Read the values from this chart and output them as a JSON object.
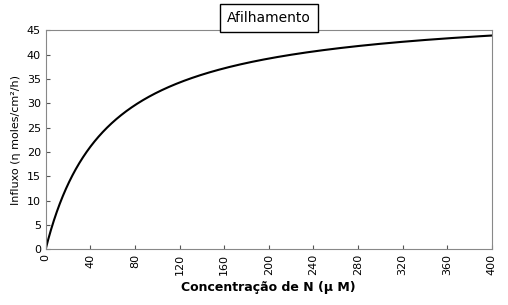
{
  "title": "Afilhamento",
  "xlabel": "Concentração de N (μ M)",
  "ylabel": "Influxo (η moles/cm²/h)",
  "xlim": [
    0,
    400
  ],
  "ylim": [
    0,
    45
  ],
  "xticks": [
    0,
    40,
    80,
    120,
    160,
    200,
    240,
    280,
    320,
    360,
    400
  ],
  "yticks": [
    0,
    5,
    10,
    15,
    20,
    25,
    30,
    35,
    40,
    45
  ],
  "vmax": 50.0,
  "km": 55.0,
  "line_color": "#000000",
  "fig_bg": "#ffffff",
  "plot_bg": "#ffffff",
  "spine_color": "#888888",
  "tick_color": "#555555"
}
